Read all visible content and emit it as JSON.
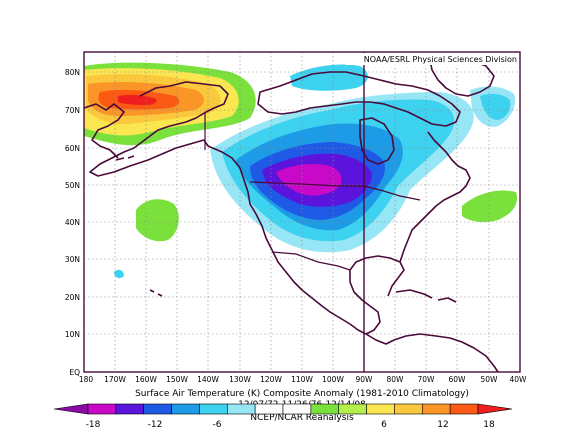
{
  "header": {
    "source": "NOAA/ESRL Physical Sciences Division"
  },
  "caption": {
    "line1": "Surface Air Temperature (K) Composite Anomaly (1981-2010 Climatology)",
    "line2": "12/07/72-11/26/76-12/14/08",
    "line3": "NCEP/NCAR Reanalysis"
  },
  "axes": {
    "lat_labels": [
      "80N",
      "70N",
      "60N",
      "50N",
      "40N",
      "30N",
      "20N",
      "10N",
      "EQ"
    ],
    "lon_labels": [
      "180",
      "170W",
      "160W",
      "150W",
      "140W",
      "130W",
      "120W",
      "110W",
      "100W",
      "90W",
      "80W",
      "70W",
      "60W",
      "50W",
      "40W"
    ],
    "lat_range": [
      0,
      85
    ],
    "lon_range": [
      -180,
      -40
    ]
  },
  "colorbar": {
    "tick_labels": [
      "-18",
      "-12",
      "-6",
      "6",
      "12",
      "18"
    ],
    "colors": [
      "#8b0aa5",
      "#c80ac8",
      "#5a14dc",
      "#1e5ae6",
      "#1e9be6",
      "#3cd2f0",
      "#96e6f5",
      "#ffffff",
      "#ffffff",
      "#7ae13c",
      "#b4f04b",
      "#fae650",
      "#fac83c",
      "#fa9628",
      "#fa5a14",
      "#f01e1e"
    ]
  },
  "anomaly_colors": {
    "strong_cold": "#c80ac8",
    "cold": "#5a14dc",
    "cool": "#1e9be6",
    "mild_cool": "#3cd2f0",
    "slight_cool": "#96e6f5",
    "slight_warm": "#7ae13c",
    "warm": "#fae650",
    "hot": "#fa9628",
    "hottest": "#f01e1e"
  }
}
